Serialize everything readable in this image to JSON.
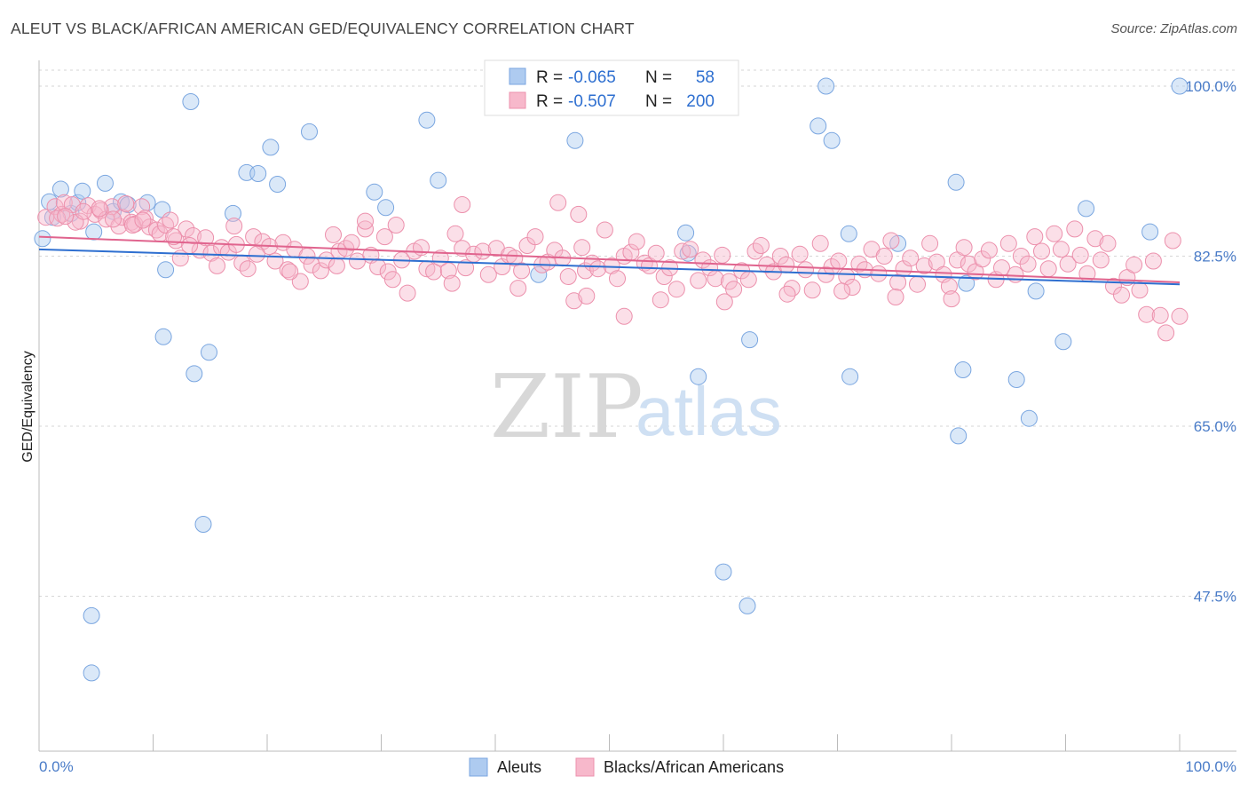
{
  "header": {
    "title": "ALEUT VS BLACK/AFRICAN AMERICAN GED/EQUIVALENCY CORRELATION CHART",
    "source": "Source: ZipAtlas.com"
  },
  "legend_top": {
    "rows": [
      {
        "r_label": "R =",
        "r_value": "-0.065",
        "n_label": "N =",
        "n_value": "58",
        "color": "#aecbf0"
      },
      {
        "r_label": "R =",
        "r_value": "-0.507",
        "n_label": "N =",
        "n_value": "200",
        "color": "#f7b8cb"
      }
    ]
  },
  "watermark": {
    "zip": "ZIP",
    "atlas": "atlas"
  },
  "chart_data": {
    "type": "scatter",
    "title": "ALEUT VS BLACK/AFRICAN AMERICAN GED/EQUIVALENCY CORRELATION CHART",
    "xlabel": "",
    "ylabel": "GED/Equivalency",
    "xlim": [
      0,
      100
    ],
    "ylim": [
      30,
      102
    ],
    "x_tick_labels": [
      "0.0%",
      "100.0%"
    ],
    "y_ticks": [
      100,
      82.5,
      65,
      47.5
    ],
    "y_tick_labels": [
      "100.0%",
      "82.5%",
      "65.0%",
      "47.5%"
    ],
    "grid": "horizontal dashed",
    "legend_position": "top-center",
    "series": [
      {
        "name": "Aleuts",
        "color": "#aecbf0",
        "stroke": "#7aa6e0",
        "trend_color": "#2e6fd0",
        "r": -0.065,
        "n": 58,
        "trend": {
          "x": [
            0,
            100
          ],
          "y": [
            83.2,
            79.6
          ]
        },
        "points": [
          [
            0.3,
            84.3
          ],
          [
            0.9,
            88.1
          ],
          [
            1.2,
            86.5
          ],
          [
            1.9,
            89.4
          ],
          [
            2.8,
            86.9
          ],
          [
            3.4,
            88.0
          ],
          [
            3.8,
            89.2
          ],
          [
            4.8,
            85.0
          ],
          [
            5.8,
            90.0
          ],
          [
            6.5,
            87.1
          ],
          [
            7.2,
            88.1
          ],
          [
            7.8,
            87.8
          ],
          [
            9.5,
            88.0
          ],
          [
            10.8,
            87.3
          ],
          [
            11.1,
            81.1
          ],
          [
            10.9,
            74.2
          ],
          [
            13.3,
            98.4
          ],
          [
            13.6,
            70.4
          ],
          [
            14.4,
            54.9
          ],
          [
            14.9,
            72.6
          ],
          [
            18.2,
            91.1
          ],
          [
            19.2,
            91.0
          ],
          [
            20.3,
            93.7
          ],
          [
            20.9,
            89.9
          ],
          [
            23.7,
            95.3
          ],
          [
            29.4,
            89.1
          ],
          [
            30.4,
            87.5
          ],
          [
            34.0,
            96.5
          ],
          [
            35.0,
            90.3
          ],
          [
            43.8,
            80.6
          ],
          [
            47.0,
            94.4
          ],
          [
            56.0,
            100.0
          ],
          [
            56.9,
            82.8
          ],
          [
            56.7,
            84.9
          ],
          [
            57.8,
            70.1
          ],
          [
            60.0,
            50.0
          ],
          [
            62.1,
            46.5
          ],
          [
            62.3,
            73.9
          ],
          [
            68.3,
            95.9
          ],
          [
            69.0,
            100.0
          ],
          [
            69.5,
            94.4
          ],
          [
            71.0,
            84.8
          ],
          [
            71.1,
            70.1
          ],
          [
            75.3,
            83.8
          ],
          [
            80.4,
            90.1
          ],
          [
            80.6,
            64.0
          ],
          [
            81.3,
            79.7
          ],
          [
            86.8,
            65.8
          ],
          [
            85.7,
            69.8
          ],
          [
            87.4,
            78.9
          ],
          [
            89.8,
            73.7
          ],
          [
            91.8,
            87.4
          ],
          [
            97.4,
            85.0
          ],
          [
            100.0,
            100.0
          ],
          [
            4.6,
            45.5
          ],
          [
            4.6,
            39.6
          ],
          [
            81.0,
            70.8
          ],
          [
            17.0,
            86.9
          ]
        ]
      },
      {
        "name": "Blacks/African Americans",
        "color": "#f7b8cb",
        "stroke": "#ec90ac",
        "trend_color": "#e0648e",
        "r": -0.507,
        "n": 200,
        "trend": {
          "x": [
            0,
            100
          ],
          "y": [
            84.5,
            79.8
          ]
        },
        "points": [
          [
            0.6,
            86.5
          ],
          [
            1.4,
            87.6
          ],
          [
            2.0,
            86.8
          ],
          [
            2.2,
            88.0
          ],
          [
            2.9,
            87.8
          ],
          [
            3.6,
            86.1
          ],
          [
            4.3,
            87.7
          ],
          [
            4.9,
            86.8
          ],
          [
            5.4,
            87.2
          ],
          [
            5.9,
            86.3
          ],
          [
            6.4,
            87.6
          ],
          [
            7.0,
            85.6
          ],
          [
            7.3,
            86.5
          ],
          [
            7.6,
            87.9
          ],
          [
            8.1,
            86.0
          ],
          [
            8.4,
            85.8
          ],
          [
            9.0,
            87.6
          ],
          [
            9.3,
            86.4
          ],
          [
            9.7,
            85.5
          ],
          [
            10.3,
            85.2
          ],
          [
            10.6,
            84.8
          ],
          [
            11.1,
            85.7
          ],
          [
            11.5,
            86.2
          ],
          [
            12.0,
            84.1
          ],
          [
            12.4,
            82.3
          ],
          [
            12.9,
            85.3
          ],
          [
            13.5,
            84.6
          ],
          [
            14.1,
            83.1
          ],
          [
            14.6,
            84.4
          ],
          [
            15.1,
            82.8
          ],
          [
            15.6,
            81.5
          ],
          [
            16.0,
            83.4
          ],
          [
            16.6,
            82.9
          ],
          [
            17.3,
            83.7
          ],
          [
            17.8,
            81.8
          ],
          [
            18.3,
            81.2
          ],
          [
            18.8,
            84.5
          ],
          [
            19.6,
            84.0
          ],
          [
            20.2,
            83.5
          ],
          [
            20.7,
            82.0
          ],
          [
            21.4,
            83.9
          ],
          [
            21.8,
            81.1
          ],
          [
            22.4,
            83.2
          ],
          [
            22.9,
            79.9
          ],
          [
            23.5,
            82.5
          ],
          [
            23.9,
            81.6
          ],
          [
            24.7,
            81.0
          ],
          [
            25.2,
            82.1
          ],
          [
            25.8,
            84.7
          ],
          [
            26.3,
            83.0
          ],
          [
            26.9,
            83.3
          ],
          [
            27.4,
            83.9
          ],
          [
            27.9,
            82.0
          ],
          [
            28.6,
            85.3
          ],
          [
            29.1,
            82.6
          ],
          [
            29.7,
            81.4
          ],
          [
            30.3,
            84.5
          ],
          [
            30.6,
            80.9
          ],
          [
            31.3,
            85.7
          ],
          [
            31.8,
            82.1
          ],
          [
            32.3,
            78.7
          ],
          [
            32.9,
            83.0
          ],
          [
            33.5,
            83.4
          ],
          [
            34.0,
            81.2
          ],
          [
            34.6,
            80.9
          ],
          [
            35.2,
            82.3
          ],
          [
            35.9,
            81.0
          ],
          [
            36.5,
            84.8
          ],
          [
            37.1,
            83.3
          ],
          [
            37.4,
            81.3
          ],
          [
            38.1,
            82.7
          ],
          [
            38.9,
            83.0
          ],
          [
            39.4,
            80.6
          ],
          [
            40.1,
            83.3
          ],
          [
            40.6,
            81.4
          ],
          [
            41.2,
            82.6
          ],
          [
            41.7,
            82.3
          ],
          [
            42.3,
            81.0
          ],
          [
            42.8,
            83.6
          ],
          [
            43.5,
            84.5
          ],
          [
            44.1,
            81.6
          ],
          [
            44.6,
            81.9
          ],
          [
            45.2,
            83.1
          ],
          [
            45.9,
            82.3
          ],
          [
            46.4,
            80.4
          ],
          [
            46.9,
            77.9
          ],
          [
            47.6,
            83.4
          ],
          [
            47.9,
            81.0
          ],
          [
            48.5,
            81.8
          ],
          [
            49.0,
            81.2
          ],
          [
            49.6,
            85.2
          ],
          [
            50.2,
            81.5
          ],
          [
            50.7,
            80.2
          ],
          [
            51.3,
            82.5
          ],
          [
            51.9,
            82.9
          ],
          [
            52.4,
            84.0
          ],
          [
            53.1,
            81.8
          ],
          [
            53.5,
            81.5
          ],
          [
            54.1,
            82.8
          ],
          [
            54.8,
            80.4
          ],
          [
            55.3,
            81.3
          ],
          [
            55.9,
            79.1
          ],
          [
            56.4,
            83.0
          ],
          [
            57.1,
            83.2
          ],
          [
            57.8,
            80.0
          ],
          [
            58.2,
            82.1
          ],
          [
            58.8,
            81.3
          ],
          [
            59.3,
            80.2
          ],
          [
            59.9,
            82.6
          ],
          [
            60.5,
            79.9
          ],
          [
            60.9,
            79.1
          ],
          [
            61.6,
            81.0
          ],
          [
            62.2,
            80.1
          ],
          [
            62.8,
            83.0
          ],
          [
            63.3,
            83.6
          ],
          [
            63.8,
            81.6
          ],
          [
            64.4,
            80.9
          ],
          [
            65.0,
            82.5
          ],
          [
            65.5,
            81.6
          ],
          [
            66.0,
            79.2
          ],
          [
            66.7,
            82.7
          ],
          [
            67.2,
            81.1
          ],
          [
            67.8,
            79.0
          ],
          [
            68.5,
            83.8
          ],
          [
            69.0,
            80.6
          ],
          [
            69.5,
            81.4
          ],
          [
            70.1,
            82.0
          ],
          [
            70.8,
            80.4
          ],
          [
            71.3,
            79.3
          ],
          [
            71.9,
            81.7
          ],
          [
            72.4,
            81.1
          ],
          [
            73.0,
            83.2
          ],
          [
            73.6,
            80.7
          ],
          [
            74.1,
            82.5
          ],
          [
            74.7,
            84.1
          ],
          [
            75.3,
            79.8
          ],
          [
            75.8,
            81.2
          ],
          [
            76.4,
            82.3
          ],
          [
            77.0,
            79.6
          ],
          [
            77.6,
            81.5
          ],
          [
            78.1,
            83.8
          ],
          [
            78.7,
            81.9
          ],
          [
            79.3,
            80.6
          ],
          [
            79.8,
            79.4
          ],
          [
            80.5,
            82.1
          ],
          [
            81.1,
            83.4
          ],
          [
            81.5,
            81.7
          ],
          [
            82.1,
            80.9
          ],
          [
            82.7,
            82.2
          ],
          [
            83.3,
            83.1
          ],
          [
            83.9,
            80.1
          ],
          [
            84.4,
            81.3
          ],
          [
            85.0,
            83.8
          ],
          [
            85.6,
            80.6
          ],
          [
            86.1,
            82.5
          ],
          [
            86.7,
            81.7
          ],
          [
            87.3,
            84.5
          ],
          [
            87.9,
            83.0
          ],
          [
            88.5,
            81.2
          ],
          [
            89.0,
            84.8
          ],
          [
            89.6,
            83.2
          ],
          [
            90.2,
            81.7
          ],
          [
            90.8,
            85.3
          ],
          [
            91.3,
            82.6
          ],
          [
            91.9,
            80.7
          ],
          [
            92.6,
            84.3
          ],
          [
            93.1,
            82.1
          ],
          [
            93.7,
            83.8
          ],
          [
            94.2,
            79.4
          ],
          [
            94.9,
            78.5
          ],
          [
            95.4,
            80.3
          ],
          [
            96.0,
            81.6
          ],
          [
            96.5,
            79.0
          ],
          [
            97.1,
            76.5
          ],
          [
            97.7,
            82.0
          ],
          [
            98.3,
            76.4
          ],
          [
            98.8,
            74.6
          ],
          [
            99.4,
            84.1
          ],
          [
            100.0,
            76.3
          ],
          [
            51.3,
            76.3
          ],
          [
            45.5,
            88.0
          ],
          [
            47.3,
            86.8
          ],
          [
            37.1,
            87.8
          ],
          [
            28.6,
            86.1
          ],
          [
            17.1,
            85.6
          ],
          [
            8.2,
            85.7
          ],
          [
            6.5,
            86.3
          ],
          [
            3.2,
            86.0
          ],
          [
            1.6,
            86.4
          ],
          [
            2.3,
            86.6
          ],
          [
            3.9,
            87.1
          ],
          [
            5.3,
            87.4
          ],
          [
            9.1,
            86.2
          ],
          [
            11.8,
            84.5
          ],
          [
            13.2,
            83.6
          ],
          [
            19.1,
            82.7
          ],
          [
            22.0,
            80.9
          ],
          [
            26.1,
            81.5
          ],
          [
            31.0,
            80.1
          ],
          [
            36.2,
            79.7
          ],
          [
            42.0,
            79.2
          ],
          [
            48.0,
            78.4
          ],
          [
            54.5,
            78.0
          ],
          [
            60.1,
            77.8
          ],
          [
            65.6,
            78.6
          ],
          [
            70.4,
            78.9
          ],
          [
            75.1,
            78.3
          ],
          [
            80.0,
            78.1
          ]
        ]
      }
    ]
  },
  "bottom_legend": {
    "items": [
      {
        "label": "Aleuts",
        "color": "#aecbf0"
      },
      {
        "label": "Blacks/African Americans",
        "color": "#f7b8cb"
      }
    ]
  }
}
